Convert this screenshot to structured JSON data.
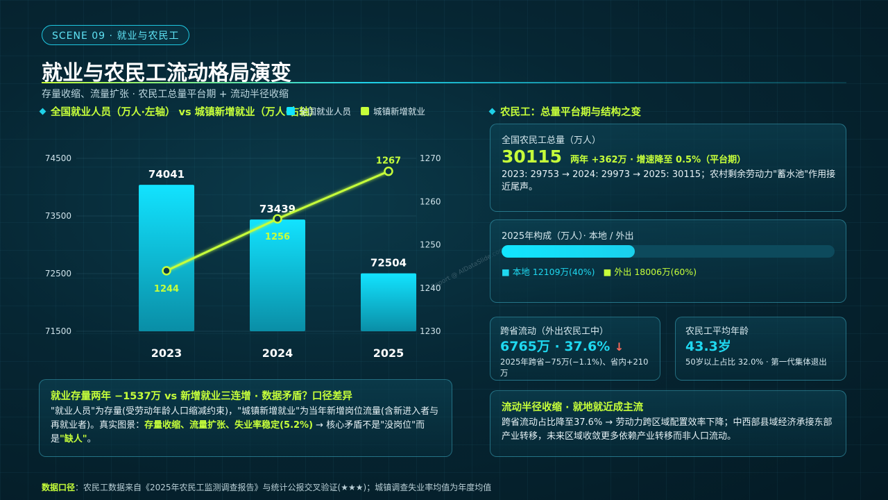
{
  "scene": "SCENE 09 · 就业与农民工",
  "title": "就业与农民工流动格局演变",
  "subtitle": "存量收缩、流量扩张 · 农民工总量平台期 + 流动半径收缩",
  "left_section_title": "全国就业人员（万人·左轴） vs 城镇新增就业（万人·右轴）",
  "legend": {
    "bar": "全国就业人员",
    "line": "城镇新增就业"
  },
  "colors": {
    "bar_top": "#12e3ff",
    "bar_bottom": "#0a8ea6",
    "line": "#c6ff3a"
  },
  "watermark": "Report @ AIDataSlide.com",
  "chart_data": {
    "type": "bar+line",
    "categories": [
      "2023",
      "2024",
      "2025"
    ],
    "series": [
      {
        "name": "全国就业人员",
        "type": "bar",
        "axis": "left",
        "values": [
          74041,
          73439,
          72504
        ]
      },
      {
        "name": "城镇新增就业",
        "type": "line",
        "axis": "right",
        "values": [
          1244,
          1256,
          1267
        ]
      }
    ],
    "left_axis": {
      "ylim": [
        71500,
        74500
      ],
      "ticks": [
        "71500",
        "72500",
        "73500",
        "74500"
      ]
    },
    "right_axis": {
      "ylim": [
        1230,
        1270
      ],
      "ticks": [
        "1230",
        "1240",
        "1250",
        "1260",
        "1270"
      ]
    }
  },
  "insight_left": {
    "title": "就业存量两年 −1537万 vs 新增就业三连增 · 数据矛盾？口径差异",
    "body_1": "\"就业人员\"为存量(受劳动年龄人口缩减约束)，\"城镇新增就业\"为当年新增岗位流量(含新进入者与再就业者)。真实图景：",
    "body_highlight": "存量收缩、流量扩张、失业率稳定(5.2%)",
    "body_2": " → 核心矛盾不是\"没岗位\"而是",
    "body_highlight_2": "\"缺人\"",
    "body_3": "。"
  },
  "right_section_title": "农民工：总量平台期与结构之变",
  "card_total": {
    "label": "全国农民工总量（万人）",
    "value": "30115",
    "note": "两年 +362万 · 增速降至 0.5%（平台期）",
    "body": "2023: 29753 → 2024: 29973 → 2025: 30115；农村剩余劳动力\"蓄水池\"作用接近尾声。"
  },
  "card_comp": {
    "label": "2025年构成（万人）· 本地 / 外出",
    "local_share": 0.4,
    "local_label": "■ 本地 12109万(40%)",
    "out_label": "■ 外出 18006万(60%)"
  },
  "card_cross": {
    "label": "跨省流动（外出农民工中）",
    "value": "6765万 · 37.6%",
    "arrow": "↓",
    "body": "2025年跨省−75万(−1.1%)、省内+210万"
  },
  "card_age": {
    "label": "农民工平均年龄",
    "value": "43.3岁",
    "body": "50岁以上占比 32.0% · 第一代集体退出"
  },
  "insight_right": {
    "title": "流动半径收缩 · 就地就近成主流",
    "body": "跨省流动占比降至37.6% → 劳动力跨区域配置效率下降；中西部县域经济承接东部产业转移，未来区域收敛更多依赖产业转移而非人口流动。"
  },
  "footer": {
    "label": "数据口径",
    "text": "：农民工数据来自《2025年农民工监测调查报告》与统计公报交叉验证(★★★)；城镇调查失业率均值为年度均值"
  }
}
